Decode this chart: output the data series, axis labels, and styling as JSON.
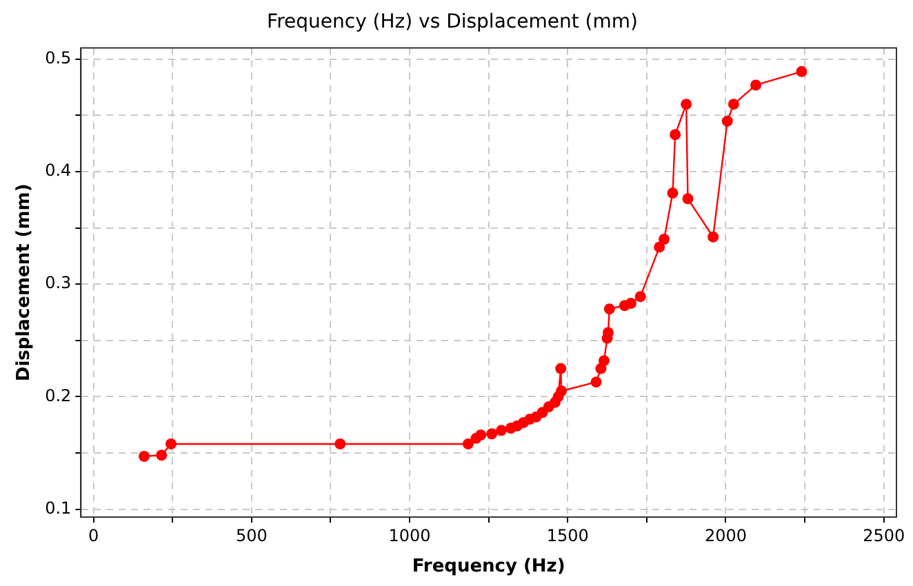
{
  "chart_data": {
    "type": "line",
    "title": "Frequency (Hz) vs Displacement (mm)",
    "xlabel": "Frequency (Hz)",
    "ylabel": "Displacement (mm)",
    "x": [
      160,
      215,
      245,
      780,
      1185,
      1210,
      1225,
      1260,
      1290,
      1320,
      1340,
      1360,
      1380,
      1400,
      1420,
      1440,
      1460,
      1470,
      1478,
      1480,
      1590,
      1605,
      1615,
      1625,
      1628,
      1632,
      1680,
      1700,
      1730,
      1790,
      1805,
      1832,
      1840,
      1875,
      1880,
      1960,
      2005,
      2025,
      2095,
      2240
    ],
    "series": [
      {
        "color": "#ff0000",
        "values": [
          0.147,
          0.148,
          0.158,
          0.158,
          0.158,
          0.163,
          0.166,
          0.167,
          0.17,
          0.172,
          0.174,
          0.177,
          0.18,
          0.182,
          0.186,
          0.191,
          0.195,
          0.2,
          0.225,
          0.205,
          0.213,
          0.225,
          0.232,
          0.252,
          0.257,
          0.278,
          0.281,
          0.283,
          0.289,
          0.333,
          0.34,
          0.381,
          0.433,
          0.46,
          0.376,
          0.342,
          0.445,
          0.46,
          0.477,
          0.489
        ]
      }
    ],
    "xlim": [
      -40,
      2540
    ],
    "ylim": [
      0.093,
      0.51
    ],
    "xticks": [
      0,
      {
        "value": 250,
        "label": null
      },
      500,
      {
        "value": 750,
        "label": null
      },
      1000,
      {
        "value": 1250,
        "label": null
      },
      1500,
      {
        "value": 1750,
        "label": null
      },
      2000,
      {
        "value": 2250,
        "label": null
      },
      2500
    ],
    "yticks": [
      0.1,
      {
        "value": 0.15,
        "label": null
      },
      0.2,
      {
        "value": 0.25,
        "label": null
      },
      0.3,
      {
        "value": 0.35,
        "label": null
      },
      0.4,
      {
        "value": 0.45,
        "label": null
      },
      0.5
    ],
    "grid": true,
    "legend": false,
    "marker": "circle",
    "line_style": "solid"
  }
}
